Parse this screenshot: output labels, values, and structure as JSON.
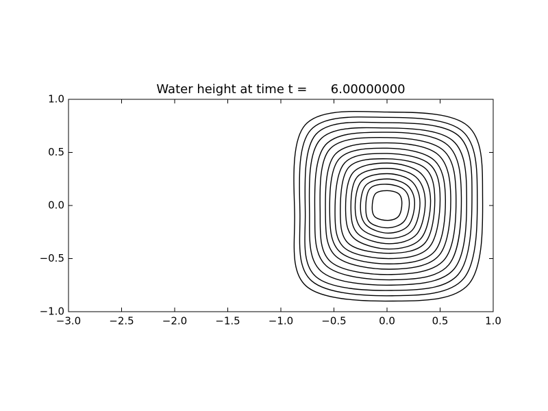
{
  "chart_data": {
    "type": "contour",
    "title": "Water height at time t =      6.00000000",
    "xlim": [
      -3,
      1
    ],
    "ylim": [
      -1,
      1
    ],
    "xticks": [
      {
        "value": -3,
        "label": "−3.0"
      },
      {
        "value": -2.5,
        "label": "−2.5"
      },
      {
        "value": -2,
        "label": "−2.0"
      },
      {
        "value": -1.5,
        "label": "−1.5"
      },
      {
        "value": -1,
        "label": "−1.0"
      },
      {
        "value": -0.5,
        "label": "−0.5"
      },
      {
        "value": 0,
        "label": "0.0"
      },
      {
        "value": 0.5,
        "label": "0.5"
      },
      {
        "value": 1,
        "label": "1.0"
      }
    ],
    "yticks": [
      {
        "value": -1,
        "label": "−1.0"
      },
      {
        "value": -0.5,
        "label": "−0.5"
      },
      {
        "value": 0,
        "label": "0.0"
      },
      {
        "value": 0.5,
        "label": "0.5"
      },
      {
        "value": 1,
        "label": "1.0"
      }
    ],
    "color": "#000000",
    "contours": [
      {
        "x": [
          0.9,
          0.76,
          0,
          -0.77,
          -0.87,
          -0.76,
          0.05,
          0.77
        ],
        "y": [
          0.1,
          0.75,
          0.88,
          0.76,
          -0.1,
          -0.76,
          -0.9,
          -0.74
        ]
      },
      {
        "x": [
          0.85,
          0.71,
          0,
          -0.72,
          -0.82,
          -0.71,
          0.05,
          0.72
        ],
        "y": [
          0.09,
          0.7,
          0.83,
          0.71,
          -0.09,
          -0.71,
          -0.85,
          -0.69
        ]
      },
      {
        "x": [
          0.8,
          0.67,
          0,
          -0.67,
          -0.77,
          -0.67,
          0.04,
          0.67
        ],
        "y": [
          0.09,
          0.66,
          0.78,
          0.67,
          -0.09,
          -0.67,
          -0.8,
          -0.65
        ]
      },
      {
        "x": [
          0.75,
          0.62,
          0,
          -0.63,
          -0.73,
          -0.62,
          0.04,
          0.63
        ],
        "y": [
          0.08,
          0.61,
          0.73,
          0.62,
          -0.08,
          -0.62,
          -0.75,
          -0.6
        ]
      },
      {
        "x": [
          0.7,
          0.57,
          0,
          -0.58,
          -0.68,
          -0.57,
          0.04,
          0.58
        ],
        "y": [
          0.08,
          0.57,
          0.69,
          0.57,
          -0.08,
          -0.57,
          -0.7,
          -0.56
        ]
      },
      {
        "x": [
          0.65,
          0.53,
          0,
          -0.54,
          -0.63,
          -0.53,
          0.04,
          0.54
        ],
        "y": [
          0.07,
          0.52,
          0.64,
          0.53,
          -0.07,
          -0.53,
          -0.65,
          -0.51
        ]
      },
      {
        "x": [
          0.6,
          0.48,
          0,
          -0.49,
          -0.58,
          -0.48,
          0.03,
          0.49
        ],
        "y": [
          0.07,
          0.48,
          0.59,
          0.48,
          -0.07,
          -0.48,
          -0.6,
          -0.47
        ]
      },
      {
        "x": [
          0.55,
          0.44,
          0,
          -0.45,
          -0.54,
          -0.44,
          0.03,
          0.45
        ],
        "y": [
          0.06,
          0.43,
          0.54,
          0.44,
          -0.06,
          -0.44,
          -0.55,
          -0.43
        ]
      },
      {
        "x": [
          0.5,
          0.4,
          0,
          -0.4,
          -0.49,
          -0.4,
          0.03,
          0.4
        ],
        "y": [
          0.06,
          0.39,
          0.49,
          0.4,
          -0.06,
          -0.4,
          -0.5,
          -0.39
        ]
      },
      {
        "x": [
          0.45,
          0.36,
          0,
          -0.36,
          -0.44,
          -0.36,
          0.03,
          0.36
        ],
        "y": [
          0.05,
          0.35,
          0.44,
          0.36,
          -0.05,
          -0.36,
          -0.45,
          -0.35
        ]
      },
      {
        "x": [
          0.41,
          0.31,
          0,
          -0.32,
          -0.39,
          -0.31,
          0.02,
          0.32
        ],
        "y": [
          0.05,
          0.31,
          0.4,
          0.31,
          -0.05,
          -0.31,
          -0.41,
          -0.31
        ]
      },
      {
        "x": [
          0.36,
          0.27,
          0,
          -0.28,
          -0.34,
          -0.27,
          0.02,
          0.28
        ],
        "y": [
          0.04,
          0.27,
          0.35,
          0.27,
          -0.04,
          -0.27,
          -0.36,
          -0.27
        ]
      },
      {
        "x": [
          0.31,
          0.23,
          0,
          -0.24,
          -0.3,
          -0.23,
          0.02,
          0.24
        ],
        "y": [
          0.03,
          0.23,
          0.3,
          0.23,
          -0.03,
          -0.23,
          -0.31,
          -0.23
        ]
      },
      {
        "x": [
          0.26,
          0.19,
          0,
          -0.2,
          -0.25,
          -0.19,
          0.01,
          0.2
        ],
        "y": [
          0.03,
          0.19,
          0.25,
          0.19,
          -0.03,
          -0.19,
          -0.26,
          -0.19
        ]
      },
      {
        "x": [
          0.21,
          0.16,
          0,
          -0.16,
          -0.2,
          -0.16,
          0.01,
          0.16
        ],
        "y": [
          0.02,
          0.15,
          0.2,
          0.16,
          -0.02,
          -0.16,
          -0.21,
          -0.15
        ]
      },
      {
        "x": [
          0.14,
          0.11,
          0,
          -0.11,
          -0.14,
          -0.11,
          0.01,
          0.11
        ],
        "y": [
          0.02,
          0.11,
          0.14,
          0.11,
          -0.02,
          -0.11,
          -0.14,
          -0.1
        ]
      }
    ]
  }
}
